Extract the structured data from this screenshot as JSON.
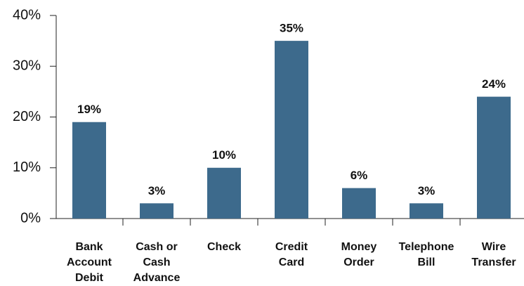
{
  "chart_data": {
    "type": "bar",
    "categories": [
      "Bank\nAccount\nDebit",
      "Cash or\nCash\nAdvance",
      "Check",
      "Credit\nCard",
      "Money\nOrder",
      "Telephone\nBill",
      "Wire\nTransfer"
    ],
    "values": [
      19,
      3,
      10,
      35,
      6,
      3,
      24
    ],
    "value_labels": [
      "19%",
      "3%",
      "10%",
      "35%",
      "6%",
      "3%",
      "24%"
    ],
    "color": "#3d6a8c",
    "ylim": [
      0,
      40
    ],
    "yticks": [
      {
        "value": 0,
        "label": "0%"
      },
      {
        "value": 10,
        "label": "10%"
      },
      {
        "value": 20,
        "label": "20%"
      },
      {
        "value": 30,
        "label": "30%"
      },
      {
        "value": 40,
        "label": "40%"
      }
    ],
    "grid": false
  }
}
